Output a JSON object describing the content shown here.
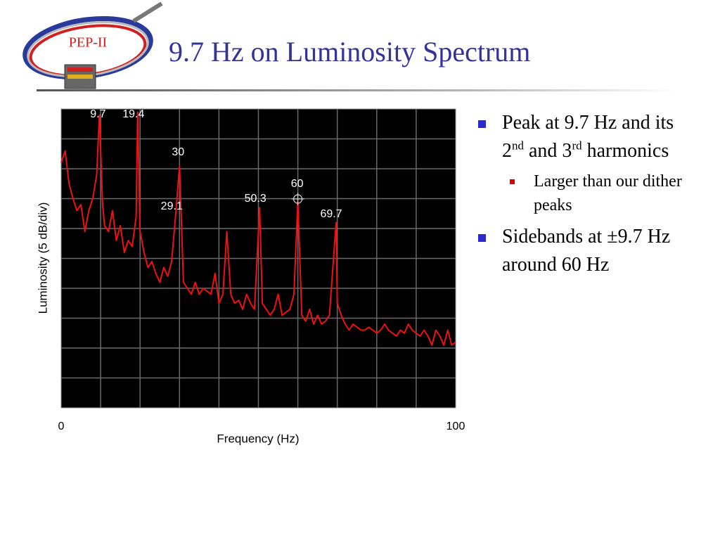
{
  "slide": {
    "title": "9.7 Hz on Luminosity Spectrum",
    "logo_text": "PEP-II",
    "bullets": [
      {
        "parts": [
          "Peak at 9.7 Hz and its 2",
          "nd",
          " and 3",
          "rd",
          " harmonics"
        ],
        "sub_bullets": [
          "Larger than our dither peaks"
        ]
      },
      {
        "parts": [
          "Sidebands at ±9.7 Hz around 60 Hz"
        ],
        "sub_bullets": []
      }
    ]
  },
  "chart_data": {
    "type": "line",
    "xlabel": "Frequency (Hz)",
    "ylabel": "Luminosity (5 dB/div)",
    "xlim": [
      0,
      100
    ],
    "xticks": [
      0,
      100
    ],
    "ylim": [
      0,
      10
    ],
    "color": "#ee1111",
    "background": "#000000",
    "grid": true,
    "x": [
      0,
      1,
      2,
      3,
      4,
      5,
      6,
      7,
      8,
      9,
      9.7,
      10.5,
      11,
      12,
      13,
      14,
      15,
      16,
      17,
      18,
      19,
      19.4,
      20,
      21,
      22,
      23,
      24,
      25,
      26,
      27,
      28,
      29.1,
      30,
      31,
      32,
      33,
      34,
      35,
      36,
      37,
      38,
      39,
      40,
      41,
      42,
      43,
      44,
      45,
      46,
      47,
      48,
      49,
      50.3,
      51,
      52,
      53,
      54,
      55,
      56,
      57,
      58,
      59,
      60,
      61,
      62,
      63,
      64,
      65,
      66,
      67,
      68,
      69.7,
      70,
      71,
      72,
      73,
      74,
      75,
      76,
      77,
      78,
      79,
      80,
      81,
      82,
      83,
      84,
      85,
      86,
      87,
      88,
      89,
      90,
      91,
      92,
      93,
      94,
      95,
      96,
      97,
      98,
      99,
      100
    ],
    "values": [
      8.2,
      8.6,
      7.5,
      7.0,
      6.6,
      6.8,
      5.9,
      6.6,
      7.0,
      7.8,
      9.8,
      6.8,
      6.1,
      5.9,
      6.6,
      5.6,
      6.1,
      5.2,
      5.6,
      5.4,
      6.4,
      9.9,
      5.9,
      5.2,
      4.7,
      4.9,
      4.5,
      4.2,
      4.7,
      4.4,
      4.9,
      6.6,
      8.1,
      4.2,
      4.0,
      3.8,
      4.2,
      3.8,
      4.0,
      3.9,
      3.8,
      4.5,
      3.5,
      3.8,
      5.9,
      3.8,
      3.5,
      3.6,
      3.3,
      3.8,
      3.5,
      3.3,
      6.7,
      3.5,
      3.3,
      3.1,
      3.3,
      3.8,
      3.1,
      3.2,
      3.3,
      3.8,
      6.9,
      3.1,
      2.9,
      3.3,
      2.8,
      3.1,
      2.8,
      2.9,
      3.1,
      6.2,
      3.5,
      3.1,
      2.8,
      2.6,
      2.8,
      2.7,
      2.6,
      2.6,
      2.7,
      2.6,
      2.5,
      2.6,
      2.8,
      2.6,
      2.5,
      2.4,
      2.6,
      2.5,
      2.8,
      2.6,
      2.5,
      2.4,
      2.6,
      2.4,
      2.1,
      2.6,
      2.4,
      2.1,
      2.6,
      2.1,
      2.2
    ],
    "peak_labels": [
      9.7,
      19.4,
      30,
      29.1,
      50.3,
      60,
      69.7
    ]
  }
}
